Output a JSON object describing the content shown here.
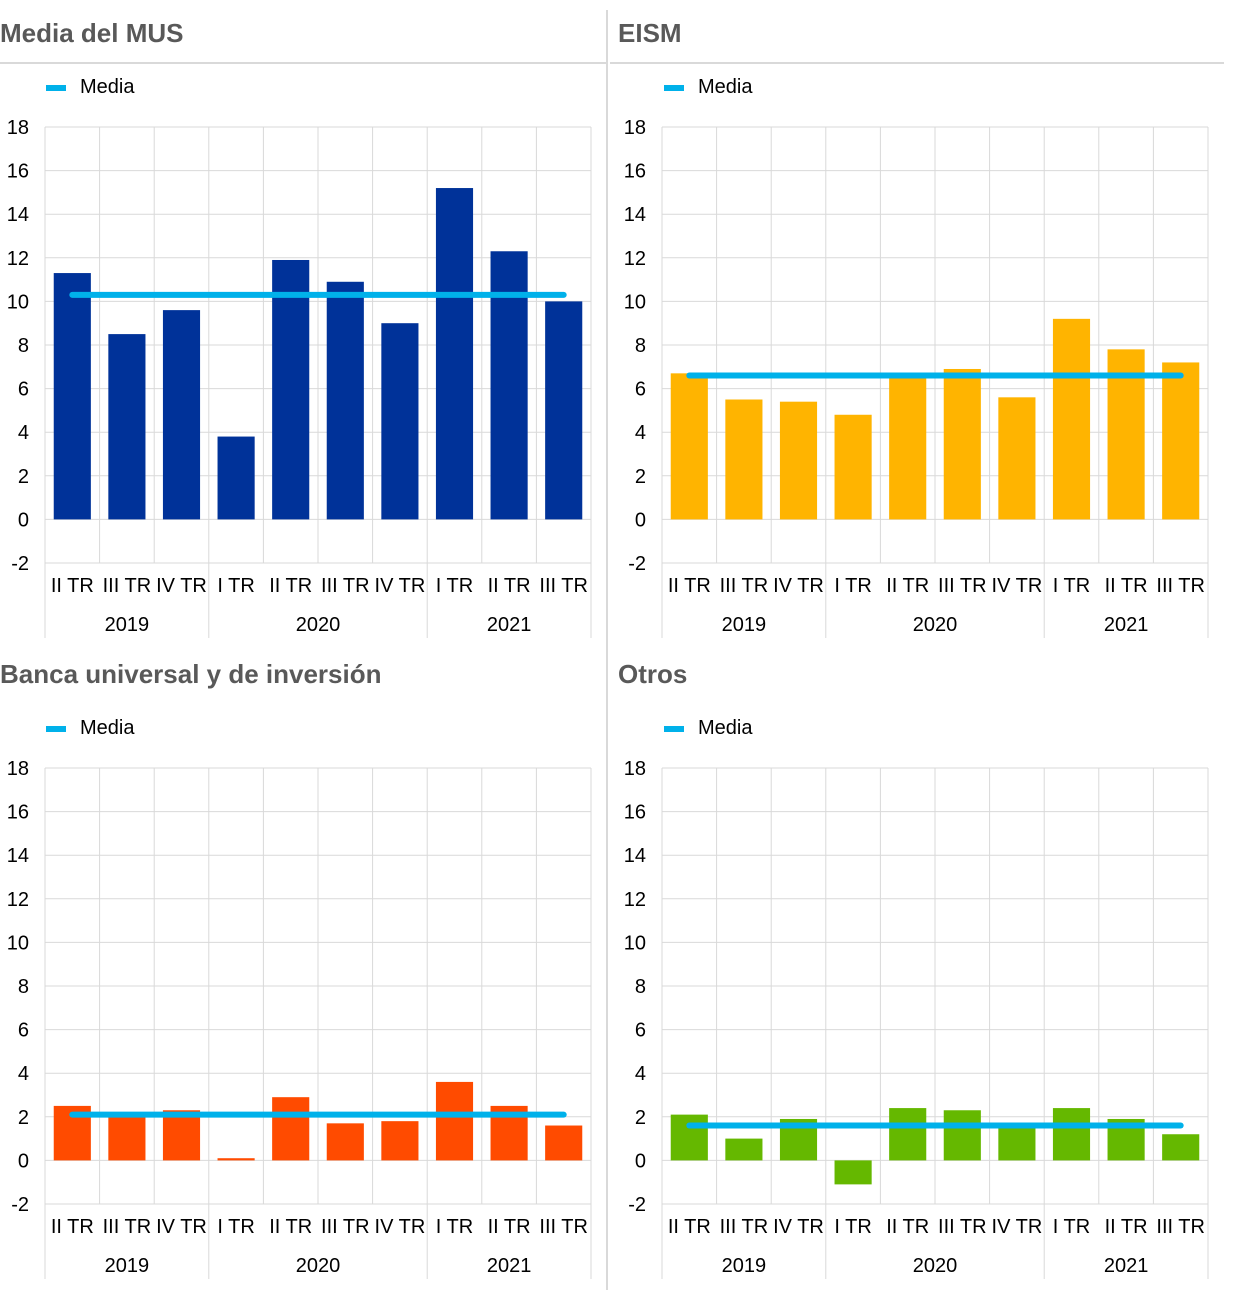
{
  "panels": [
    {
      "title": "Media del MUS",
      "color": "#003299"
    },
    {
      "title": "EISM",
      "color": "#ffb400"
    },
    {
      "title": "Banca universal y de inversión",
      "color": "#ff4b00"
    },
    {
      "title": "Otros",
      "color": "#65b800"
    }
  ],
  "legend_label": "Media",
  "legend_color": "#00b1ea",
  "chart_data": [
    {
      "type": "bar",
      "title": "Media del MUS",
      "categories": [
        "II TR",
        "III TR",
        "IV TR",
        "I TR",
        "II TR",
        "III TR",
        "IV TR",
        "I TR",
        "II TR",
        "III TR"
      ],
      "year_groups": [
        {
          "label": "2019",
          "span": 3
        },
        {
          "label": "2020",
          "span": 4
        },
        {
          "label": "2021",
          "span": 3
        }
      ],
      "values": [
        11.3,
        8.5,
        9.6,
        3.8,
        11.9,
        10.9,
        9.0,
        15.2,
        12.3,
        10.0
      ],
      "mean": 10.3,
      "ylim": [
        -2,
        18
      ],
      "yticks": [
        18,
        16,
        14,
        12,
        10,
        8,
        6,
        4,
        2,
        0,
        -2
      ],
      "grid": true
    },
    {
      "type": "bar",
      "title": "EISM",
      "categories": [
        "II TR",
        "III TR",
        "IV TR",
        "I TR",
        "II TR",
        "III TR",
        "IV TR",
        "I TR",
        "II TR",
        "III TR"
      ],
      "year_groups": [
        {
          "label": "2019",
          "span": 3
        },
        {
          "label": "2020",
          "span": 4
        },
        {
          "label": "2021",
          "span": 3
        }
      ],
      "values": [
        6.7,
        5.5,
        5.4,
        4.8,
        6.5,
        6.9,
        5.6,
        9.2,
        7.8,
        7.2
      ],
      "mean": 6.6,
      "ylim": [
        -2,
        18
      ],
      "yticks": [
        18,
        16,
        14,
        12,
        10,
        8,
        6,
        4,
        2,
        0,
        -2
      ],
      "grid": true
    },
    {
      "type": "bar",
      "title": "Banca universal y de inversión",
      "categories": [
        "II TR",
        "III TR",
        "IV TR",
        "I TR",
        "II TR",
        "III TR",
        "IV TR",
        "I TR",
        "II TR",
        "III TR"
      ],
      "year_groups": [
        {
          "label": "2019",
          "span": 3
        },
        {
          "label": "2020",
          "span": 4
        },
        {
          "label": "2021",
          "span": 3
        }
      ],
      "values": [
        2.5,
        2.0,
        2.3,
        0.1,
        2.9,
        1.7,
        1.8,
        3.6,
        2.5,
        1.6
      ],
      "mean": 2.1,
      "ylim": [
        -2,
        18
      ],
      "yticks": [
        18,
        16,
        14,
        12,
        10,
        8,
        6,
        4,
        2,
        0,
        -2
      ],
      "grid": true
    },
    {
      "type": "bar",
      "title": "Otros",
      "categories": [
        "II TR",
        "III TR",
        "IV TR",
        "I TR",
        "II TR",
        "III TR",
        "IV TR",
        "I TR",
        "II TR",
        "III TR"
      ],
      "year_groups": [
        {
          "label": "2019",
          "span": 3
        },
        {
          "label": "2020",
          "span": 4
        },
        {
          "label": "2021",
          "span": 3
        }
      ],
      "values": [
        2.1,
        1.0,
        1.9,
        -1.1,
        2.4,
        2.3,
        1.6,
        2.4,
        1.9,
        1.2
      ],
      "mean": 1.6,
      "ylim": [
        -2,
        18
      ],
      "yticks": [
        18,
        16,
        14,
        12,
        10,
        8,
        6,
        4,
        2,
        0,
        -2
      ],
      "grid": true
    }
  ]
}
